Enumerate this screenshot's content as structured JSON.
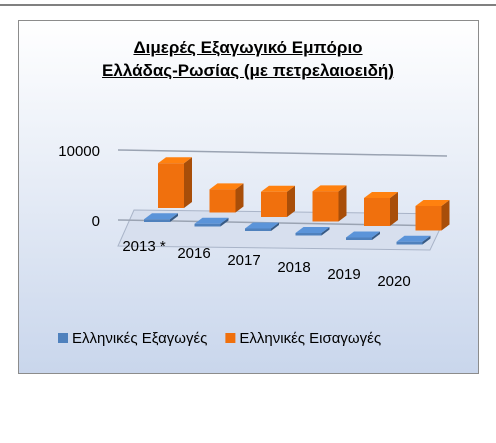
{
  "chart_data": {
    "type": "bar3d",
    "title": "Διμερές Εξαγωγικό Εμπόριο Ελλάδας-Ρωσίας  (με πετρελαιοειδή)",
    "categories": [
      "2013 *",
      "2016",
      "2017",
      "2018",
      "2019",
      "2020"
    ],
    "series": [
      {
        "name": "Ελληνικές Εξαγωγές",
        "color": "#4f81bd",
        "values": [
          400,
          400,
          350,
          350,
          350,
          400
        ]
      },
      {
        "name": "Ελληνικές Εισαγωγές",
        "color": "#f0700d",
        "values": [
          6400,
          3300,
          3600,
          4300,
          4000,
          3500
        ]
      }
    ],
    "ylim": [
      0,
      10000
    ],
    "yticks": [
      0,
      10000
    ],
    "grid": true,
    "legend": "bottom"
  }
}
